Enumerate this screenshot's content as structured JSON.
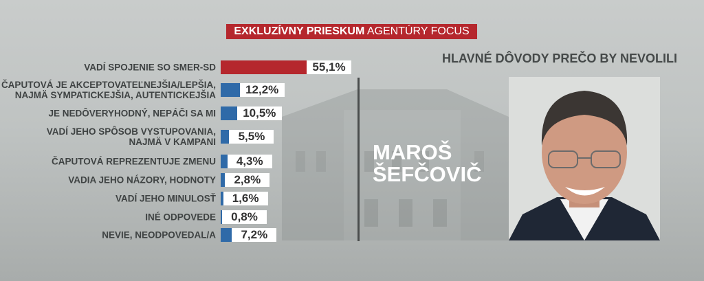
{
  "banner": {
    "bold": "EXKLUZÍVNY PRIESKUM",
    "regular": "AGENTÚRY FOCUS"
  },
  "subtitle": "HLAVNÉ DÔVODY PREČO BY NEVOLILI",
  "person": {
    "line1": "MAROŠ",
    "line2": "ŠEFČOVIČ"
  },
  "colors": {
    "highlight": "#b5272d",
    "bar": "#2f6aa8",
    "banner": "#b5272d"
  },
  "chart_data": {
    "type": "bar",
    "orientation": "horizontal",
    "title": "HLAVNÉ DÔVODY PREČO BY NEVOLILI",
    "categories": [
      [
        "VADÍ SPOJENIE SO SMER-SD"
      ],
      [
        "ČAPUTOVÁ JE AKCEPTOVATEĽNEJŠIA/LEPŠIA,",
        "NAJMÄ SYMPATICKEJŠIA, AUTENTICKEJŠIA"
      ],
      [
        "JE NEDÔVERYHODNÝ, NEPÁČI SA MI"
      ],
      [
        "VADÍ JEHO SPÔSOB VYSTUPOVANIA,",
        "NAJMÄ V KAMPANI"
      ],
      [
        "ČAPUTOVÁ REPREZENTUJE ZMENU"
      ],
      [
        "VADIA JEHO NÁZORY, HODNOTY"
      ],
      [
        "VADÍ JEHO MINULOSŤ"
      ],
      [
        "INÉ ODPOVEDE"
      ],
      [
        "NEVIE, NEODPOVEDAL/A"
      ]
    ],
    "values": [
      55.1,
      12.2,
      10.5,
      5.5,
      4.3,
      2.8,
      1.6,
      0.8,
      7.2
    ],
    "value_labels": [
      "55,1%",
      "12,2%",
      "10,5%",
      "5,5%",
      "4,3%",
      "2,8%",
      "1,6%",
      "0,8%",
      "7,2%"
    ],
    "highlight_index": 0,
    "unit": "%"
  }
}
